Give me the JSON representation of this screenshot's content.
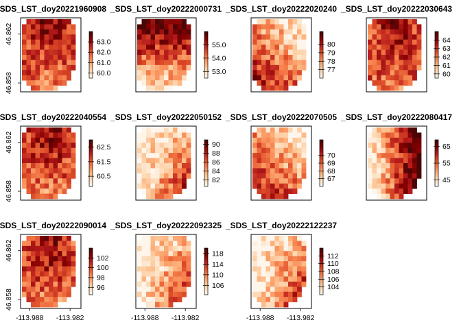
{
  "chart_data": {
    "type": "heatmap",
    "layout": {
      "rows": 3,
      "cols": 4
    },
    "x_ticks": [
      "-113.988",
      "-113.982"
    ],
    "y_ticks": [
      "46.862",
      "46.858"
    ],
    "colormap": [
      "#FFF5EB",
      "#FDD9B4",
      "#FDB07A",
      "#F67E4B",
      "#DC4B27",
      "#B71C1C",
      "#800000",
      "#4A0606"
    ],
    "panels": [
      {
        "title": "_SDS_LST_doy20221960908",
        "min": 59.5,
        "max": 64.0,
        "legend_ticks": [
          "63.0",
          "62.0",
          "61.0",
          "60.0"
        ],
        "trend": "mid"
      },
      {
        "title": "_SDS_LST_doy20222000731",
        "min": 52.5,
        "max": 56.0,
        "legend_ticks": [
          "55.0",
          "54.0",
          "53.0"
        ],
        "trend": "north"
      },
      {
        "title": "_SDS_LST_doy20222020240",
        "min": 76.0,
        "max": 81.5,
        "legend_ticks": [
          "80",
          "79",
          "78",
          "77"
        ],
        "trend": "southwest"
      },
      {
        "title": "_SDS_LST_doy20222030643",
        "min": 59.5,
        "max": 65.0,
        "legend_ticks": [
          "64",
          "63",
          "62",
          "61",
          "60"
        ],
        "trend": "mid"
      },
      {
        "title": "_SDS_LST_doy20222040554",
        "min": 59.8,
        "max": 63.0,
        "legend_ticks": [
          "62.5",
          "61.5",
          "60.5"
        ],
        "trend": "mid"
      },
      {
        "title": "_SDS_LST_doy20222050152",
        "min": 80.5,
        "max": 91.0,
        "legend_ticks": [
          "90",
          "88",
          "86",
          "84",
          "82"
        ],
        "trend": "southeast"
      },
      {
        "title": "_SDS_LST_doy20222070505",
        "min": 66.0,
        "max": 72.0,
        "legend_ticks": [
          "70",
          "69",
          "68",
          "67"
        ],
        "trend": "southwest"
      },
      {
        "title": "_SDS_LST_doy20222080417",
        "min": 41.0,
        "max": 69.0,
        "legend_ticks": [
          "65",
          "55",
          "45"
        ],
        "trend": "east"
      },
      {
        "title": "_SDS_LST_doy20222090014",
        "min": 94.5,
        "max": 104.0,
        "legend_ticks": [
          "102",
          "100",
          "98",
          "96"
        ],
        "trend": "mid"
      },
      {
        "title": "_SDS_LST_doy20222092325",
        "min": 102.5,
        "max": 120.0,
        "legend_ticks": [
          "118",
          "114",
          "110",
          "106"
        ],
        "trend": "southeast"
      },
      {
        "title": "_SDS_LST_doy20222122237",
        "min": 102.0,
        "max": 114.0,
        "legend_ticks": [
          "112",
          "110",
          "108",
          "106",
          "104"
        ],
        "trend": "southeast"
      }
    ]
  }
}
